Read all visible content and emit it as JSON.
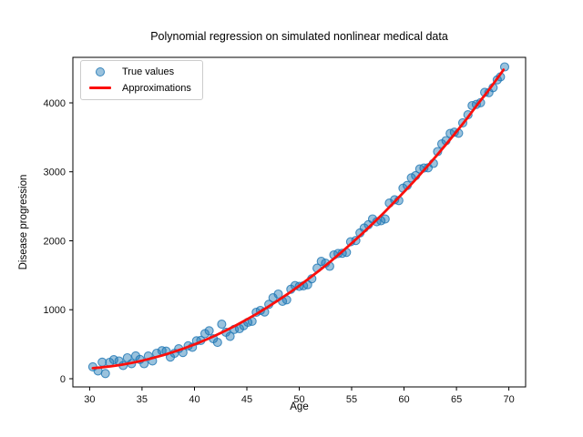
{
  "figure": {
    "background": "#ffffff"
  },
  "chart_data": {
    "type": "scatter",
    "title": "Polynomial regression on simulated nonlinear medical data",
    "xlabel": "Age",
    "ylabel": "Disease progression",
    "xlim": [
      28.4,
      71.6
    ],
    "ylim": [
      -119,
      4660
    ],
    "x_ticks": [
      30,
      35,
      40,
      45,
      50,
      55,
      60,
      65,
      70
    ],
    "y_ticks": [
      0,
      1000,
      2000,
      3000,
      4000
    ],
    "grid": false,
    "legend": {
      "position": "upper left",
      "entries": [
        {
          "label": "True values",
          "type": "marker",
          "color": "#1f77b4"
        },
        {
          "label": "Approximations",
          "type": "line",
          "color": "#fb0f0c"
        }
      ]
    },
    "series": [
      {
        "name": "True values",
        "type": "scatter",
        "color": "#1f77b4",
        "alpha": 0.5,
        "points": [
          [
            30.3,
            173
          ],
          [
            30.8,
            114
          ],
          [
            31.2,
            240
          ],
          [
            31.5,
            75
          ],
          [
            31.9,
            238
          ],
          [
            32.3,
            276
          ],
          [
            32.8,
            257
          ],
          [
            33.2,
            192
          ],
          [
            33.6,
            303
          ],
          [
            34,
            219
          ],
          [
            34.4,
            331
          ],
          [
            34.8,
            280
          ],
          [
            35.2,
            218
          ],
          [
            35.6,
            328
          ],
          [
            36,
            259
          ],
          [
            36.4,
            370
          ],
          [
            36.9,
            406
          ],
          [
            37.3,
            400
          ],
          [
            37.7,
            314
          ],
          [
            38.1,
            368
          ],
          [
            38.5,
            434
          ],
          [
            38.9,
            380
          ],
          [
            39.4,
            478
          ],
          [
            39.8,
            456
          ],
          [
            40.2,
            550
          ],
          [
            40.6,
            555
          ],
          [
            41,
            655
          ],
          [
            41.4,
            696
          ],
          [
            41.8,
            579
          ],
          [
            42.2,
            526
          ],
          [
            42.6,
            790
          ],
          [
            43,
            675
          ],
          [
            43.4,
            615
          ],
          [
            43.8,
            716
          ],
          [
            44.3,
            726
          ],
          [
            44.7,
            769
          ],
          [
            45.1,
            818
          ],
          [
            45.5,
            833
          ],
          [
            45.9,
            963
          ],
          [
            46.3,
            990
          ],
          [
            46.7,
            967
          ],
          [
            47.1,
            1079
          ],
          [
            47.5,
            1173
          ],
          [
            48,
            1228
          ],
          [
            48.4,
            1123
          ],
          [
            48.8,
            1144
          ],
          [
            49.2,
            1297
          ],
          [
            49.6,
            1350
          ],
          [
            50,
            1338
          ],
          [
            50.4,
            1348
          ],
          [
            50.8,
            1363
          ],
          [
            51.2,
            1449
          ],
          [
            51.7,
            1603
          ],
          [
            52.1,
            1701
          ],
          [
            52.5,
            1675
          ],
          [
            52.9,
            1630
          ],
          [
            53.3,
            1795
          ],
          [
            53.7,
            1817
          ],
          [
            54.1,
            1819
          ],
          [
            54.5,
            1832
          ],
          [
            54.9,
            1986
          ],
          [
            55.4,
            2004
          ],
          [
            55.8,
            2115
          ],
          [
            56.2,
            2186
          ],
          [
            56.6,
            2234
          ],
          [
            57,
            2317
          ],
          [
            57.4,
            2276
          ],
          [
            57.8,
            2290
          ],
          [
            58.2,
            2316
          ],
          [
            58.6,
            2547
          ],
          [
            59.1,
            2595
          ],
          [
            59.5,
            2583
          ],
          [
            59.9,
            2763
          ],
          [
            60.3,
            2802
          ],
          [
            60.7,
            2913
          ],
          [
            61.1,
            2945
          ],
          [
            61.5,
            3042
          ],
          [
            61.9,
            3055
          ],
          [
            62.3,
            3059
          ],
          [
            62.8,
            3122
          ],
          [
            63.2,
            3293
          ],
          [
            63.6,
            3405
          ],
          [
            64,
            3452
          ],
          [
            64.4,
            3556
          ],
          [
            64.8,
            3575
          ],
          [
            65.2,
            3560
          ],
          [
            65.6,
            3711
          ],
          [
            66.1,
            3827
          ],
          [
            66.5,
            3960
          ],
          [
            66.9,
            3978
          ],
          [
            67.3,
            4003
          ],
          [
            67.7,
            4153
          ],
          [
            68.1,
            4149
          ],
          [
            68.5,
            4221
          ],
          [
            68.9,
            4334
          ],
          [
            69.2,
            4377
          ],
          [
            69.6,
            4521
          ]
        ]
      },
      {
        "name": "Approximations",
        "type": "line",
        "color": "#fb0f0c",
        "linewidth": 2.8,
        "points": [
          [
            30.3,
            153
          ],
          [
            31,
            162
          ],
          [
            32,
            180
          ],
          [
            33,
            202
          ],
          [
            34,
            229
          ],
          [
            35,
            261
          ],
          [
            36,
            299
          ],
          [
            37,
            341
          ],
          [
            38,
            388
          ],
          [
            39,
            440
          ],
          [
            40,
            498
          ],
          [
            41,
            560
          ],
          [
            42,
            627
          ],
          [
            43,
            700
          ],
          [
            44,
            777
          ],
          [
            45,
            860
          ],
          [
            46,
            947
          ],
          [
            47,
            1040
          ],
          [
            48,
            1138
          ],
          [
            49,
            1240
          ],
          [
            50,
            1348
          ],
          [
            51,
            1461
          ],
          [
            52,
            1579
          ],
          [
            53,
            1702
          ],
          [
            54,
            1831
          ],
          [
            55,
            1964
          ],
          [
            56,
            2103
          ],
          [
            57,
            2247
          ],
          [
            58,
            2395
          ],
          [
            59,
            2549
          ],
          [
            60,
            2709
          ],
          [
            61,
            2873
          ],
          [
            62,
            3042
          ],
          [
            63,
            3217
          ],
          [
            64,
            3397
          ],
          [
            65,
            3582
          ],
          [
            66,
            3773
          ],
          [
            67,
            3976
          ],
          [
            68,
            4169
          ],
          [
            69,
            4375
          ],
          [
            69.5,
            4480
          ]
        ]
      }
    ]
  }
}
